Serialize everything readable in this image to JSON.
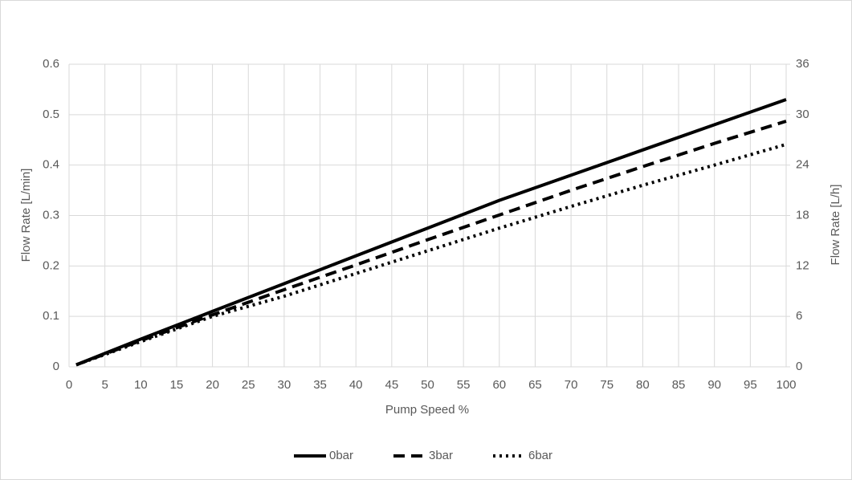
{
  "chart_data": {
    "type": "line",
    "x_label": "Pump Speed %",
    "y_label": "Flow Rate [L/min]",
    "y2_label": "Flow Rate [L/h]",
    "x": [
      1,
      10,
      20,
      30,
      40,
      50,
      60,
      70,
      80,
      90,
      100
    ],
    "series": [
      {
        "name": "0bar",
        "color": "#000000",
        "style": "solid",
        "values": [
          0.004,
          0.055,
          0.11,
          0.165,
          0.22,
          0.275,
          0.33,
          0.38,
          0.43,
          0.48,
          0.53
        ]
      },
      {
        "name": "3bar",
        "color": "#000000",
        "style": "dashed",
        "values": [
          0.004,
          0.052,
          0.103,
          0.153,
          0.202,
          0.252,
          0.301,
          0.35,
          0.397,
          0.443,
          0.487
        ]
      },
      {
        "name": "6bar",
        "color": "#000000",
        "style": "dotted",
        "values": [
          0.004,
          0.05,
          0.1,
          0.14,
          0.185,
          0.23,
          0.275,
          0.318,
          0.36,
          0.4,
          0.441
        ]
      }
    ],
    "xlim": [
      0,
      100
    ],
    "xticks": [
      0,
      5,
      10,
      15,
      20,
      25,
      30,
      35,
      40,
      45,
      50,
      55,
      60,
      65,
      70,
      75,
      80,
      85,
      90,
      95,
      100
    ],
    "ylim": [
      0,
      0.6
    ],
    "yticks": [
      0,
      0.1,
      0.2,
      0.3,
      0.4,
      0.5,
      0.6
    ],
    "y2lim": [
      0,
      36
    ],
    "y2ticks": [
      0,
      6,
      12,
      18,
      24,
      30,
      36
    ],
    "grid": true,
    "legend": "bottom"
  }
}
